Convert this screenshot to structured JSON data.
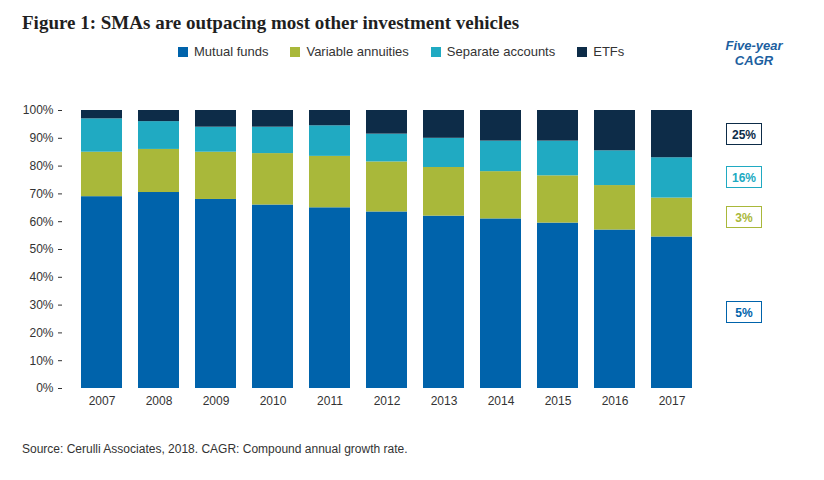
{
  "chart_data": {
    "type": "bar",
    "stacked": true,
    "title": "Figure 1: SMAs are outpacing most other investment vehicles",
    "categories": [
      "2007",
      "2008",
      "2009",
      "2010",
      "2011",
      "2012",
      "2013",
      "2014",
      "2015",
      "2016",
      "2017"
    ],
    "series": [
      {
        "name": "Mutual funds",
        "color": "#0063ab",
        "values": [
          69,
          70.5,
          68,
          66,
          65,
          63.5,
          62,
          61,
          59.5,
          57,
          54.5
        ],
        "cagr": {
          "value": 5,
          "label": "5%"
        }
      },
      {
        "name": "Variable annuities",
        "color": "#a9b83a",
        "values": [
          16,
          15.5,
          17,
          18.5,
          18.5,
          18,
          17.5,
          17,
          17,
          16,
          14
        ],
        "cagr": {
          "value": 3,
          "label": "3%"
        }
      },
      {
        "name": "Separate accounts",
        "color": "#20aac2",
        "values": [
          12,
          10,
          9,
          9.5,
          11,
          10,
          10.5,
          11,
          12.5,
          12.5,
          14.5
        ],
        "cagr": {
          "value": 16,
          "label": "16%"
        }
      },
      {
        "name": "ETFs",
        "color": "#0d2c48",
        "values": [
          3,
          4,
          6,
          6,
          5.5,
          8.5,
          10,
          11,
          11,
          14.5,
          17
        ],
        "cagr": {
          "value": 25,
          "label": "25%"
        }
      }
    ],
    "cagr_title": "Five-year CAGR",
    "ylim": [
      0,
      100
    ],
    "yticks": [
      {
        "value": 0,
        "label": "0%"
      },
      {
        "value": 10,
        "label": "10%"
      },
      {
        "value": 20,
        "label": "20%"
      },
      {
        "value": 30,
        "label": "30%"
      },
      {
        "value": 40,
        "label": "40%"
      },
      {
        "value": 50,
        "label": "50%"
      },
      {
        "value": 60,
        "label": "60%"
      },
      {
        "value": 70,
        "label": "70%"
      },
      {
        "value": 80,
        "label": "80%"
      },
      {
        "value": 90,
        "label": "90%"
      },
      {
        "value": 100,
        "label": "100%"
      }
    ],
    "grid": false,
    "legend": "top",
    "source": "Source: Cerulli Associates, 2018. CAGR: Compound annual growth rate."
  }
}
